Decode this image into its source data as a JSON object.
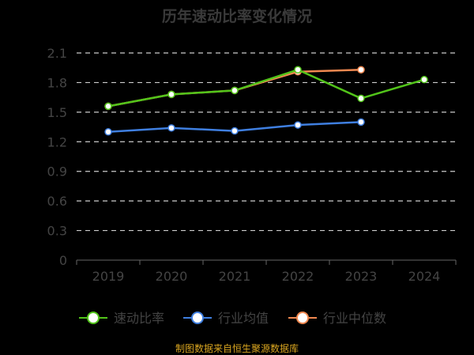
{
  "chart_data": {
    "type": "line",
    "title": "历年速动比率变化情况",
    "categories": [
      "2019",
      "2020",
      "2021",
      "2022",
      "2023",
      "2024"
    ],
    "ylim": [
      0,
      2.1
    ],
    "yticks": [
      "0",
      "0.3",
      "0.6",
      "0.9",
      "1.2",
      "1.5",
      "1.8",
      "2.1"
    ],
    "grid": true,
    "legend_position": "bottom",
    "series": [
      {
        "name": "速动比率",
        "color": "#52c41a",
        "values": [
          1.56,
          1.68,
          1.72,
          1.93,
          1.64,
          1.83
        ]
      },
      {
        "name": "行业均值",
        "color": "#3f7fe0",
        "values": [
          1.3,
          1.34,
          1.31,
          1.37,
          1.4,
          null
        ]
      },
      {
        "name": "行业中位数",
        "color": "#f08850",
        "values": [
          1.56,
          1.68,
          1.72,
          1.91,
          1.93,
          null
        ]
      }
    ]
  },
  "source": "制图数据来自恒生聚源数据库"
}
